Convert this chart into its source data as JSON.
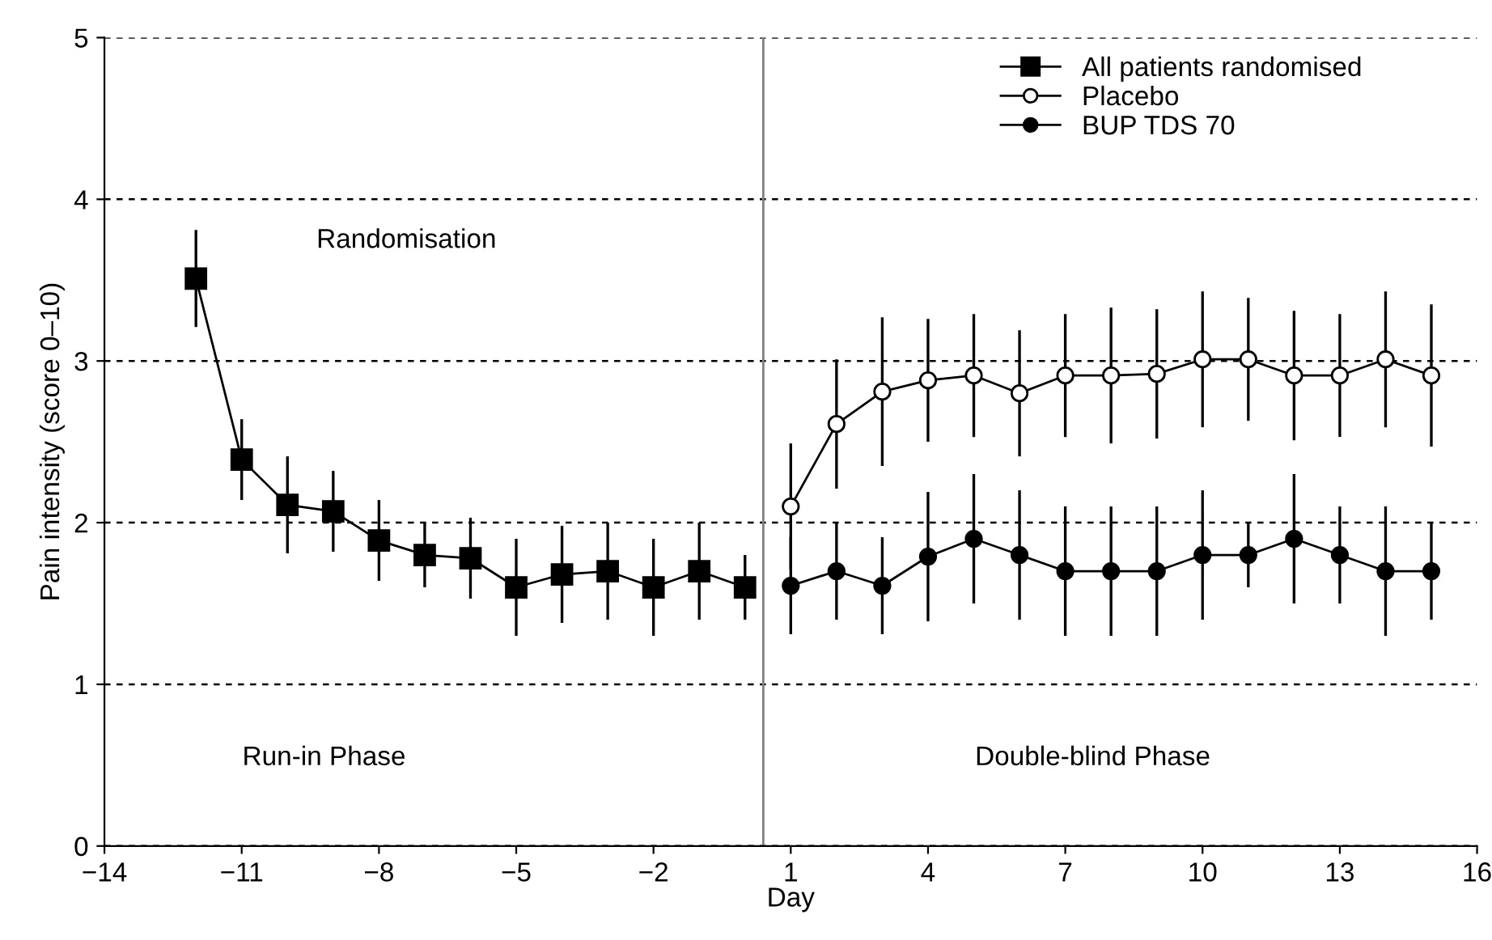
{
  "chart_data": {
    "type": "line",
    "xlabel": "Day",
    "ylabel": "Pain intensity (score 0–10)",
    "xlim": [
      -14,
      16
    ],
    "xticks": [
      {
        "value": -14,
        "label": "−14"
      },
      {
        "value": -11,
        "label": "−11"
      },
      {
        "value": -8,
        "label": "−8"
      },
      {
        "value": -5,
        "label": "−5"
      },
      {
        "value": -2,
        "label": "−2"
      },
      1,
      4,
      7,
      10,
      13,
      16
    ],
    "ylim": [
      0,
      5
    ],
    "yticks": [
      0,
      1,
      2,
      3,
      4,
      5
    ],
    "grid": "y",
    "legend": "top right",
    "series": [
      {
        "name": "All patients randomised",
        "color": "#000000",
        "marker": "square",
        "x": [
          -12,
          -11,
          -10,
          -9,
          -8,
          -7,
          -6,
          -5,
          -4,
          -3,
          -2,
          -1,
          0
        ],
        "values": [
          3.51,
          2.39,
          2.11,
          2.07,
          1.89,
          1.8,
          1.78,
          1.6,
          1.68,
          1.7,
          1.6,
          1.7,
          1.6
        ],
        "errors": [
          0.3,
          0.25,
          0.3,
          0.25,
          0.25,
          0.2,
          0.25,
          0.3,
          0.3,
          0.3,
          0.3,
          0.3,
          0.2
        ]
      },
      {
        "name": "Placebo",
        "color": "#ffffff",
        "marker": "circle",
        "x": [
          1,
          2,
          3,
          4,
          5,
          6,
          7,
          8,
          9,
          10,
          11,
          12,
          13,
          14,
          15
        ],
        "values": [
          2.1,
          2.61,
          2.81,
          2.88,
          2.91,
          2.8,
          2.91,
          2.91,
          2.92,
          3.01,
          3.01,
          2.91,
          2.91,
          3.01,
          2.91
        ],
        "errors": [
          0.39,
          0.4,
          0.46,
          0.38,
          0.38,
          0.39,
          0.38,
          0.42,
          0.4,
          0.42,
          0.38,
          0.4,
          0.38,
          0.42,
          0.44
        ]
      },
      {
        "name": "BUP TDS 70",
        "color": "#000000",
        "marker": "circle",
        "x": [
          1,
          2,
          3,
          4,
          5,
          6,
          7,
          8,
          9,
          10,
          11,
          12,
          13,
          14,
          15
        ],
        "values": [
          1.61,
          1.7,
          1.61,
          1.79,
          1.9,
          1.8,
          1.7,
          1.7,
          1.7,
          1.8,
          1.8,
          1.9,
          1.8,
          1.7,
          1.7
        ],
        "errors": [
          0.3,
          0.3,
          0.3,
          0.4,
          0.4,
          0.4,
          0.4,
          0.4,
          0.4,
          0.4,
          0.2,
          0.4,
          0.3,
          0.4,
          0.3
        ]
      }
    ],
    "ref_lines": [
      {
        "axis": "x",
        "value": 0.4,
        "color": "#808080"
      }
    ],
    "annotations": [
      "Randomisation",
      "Run-in Phase",
      "Double-blind Phase"
    ]
  }
}
